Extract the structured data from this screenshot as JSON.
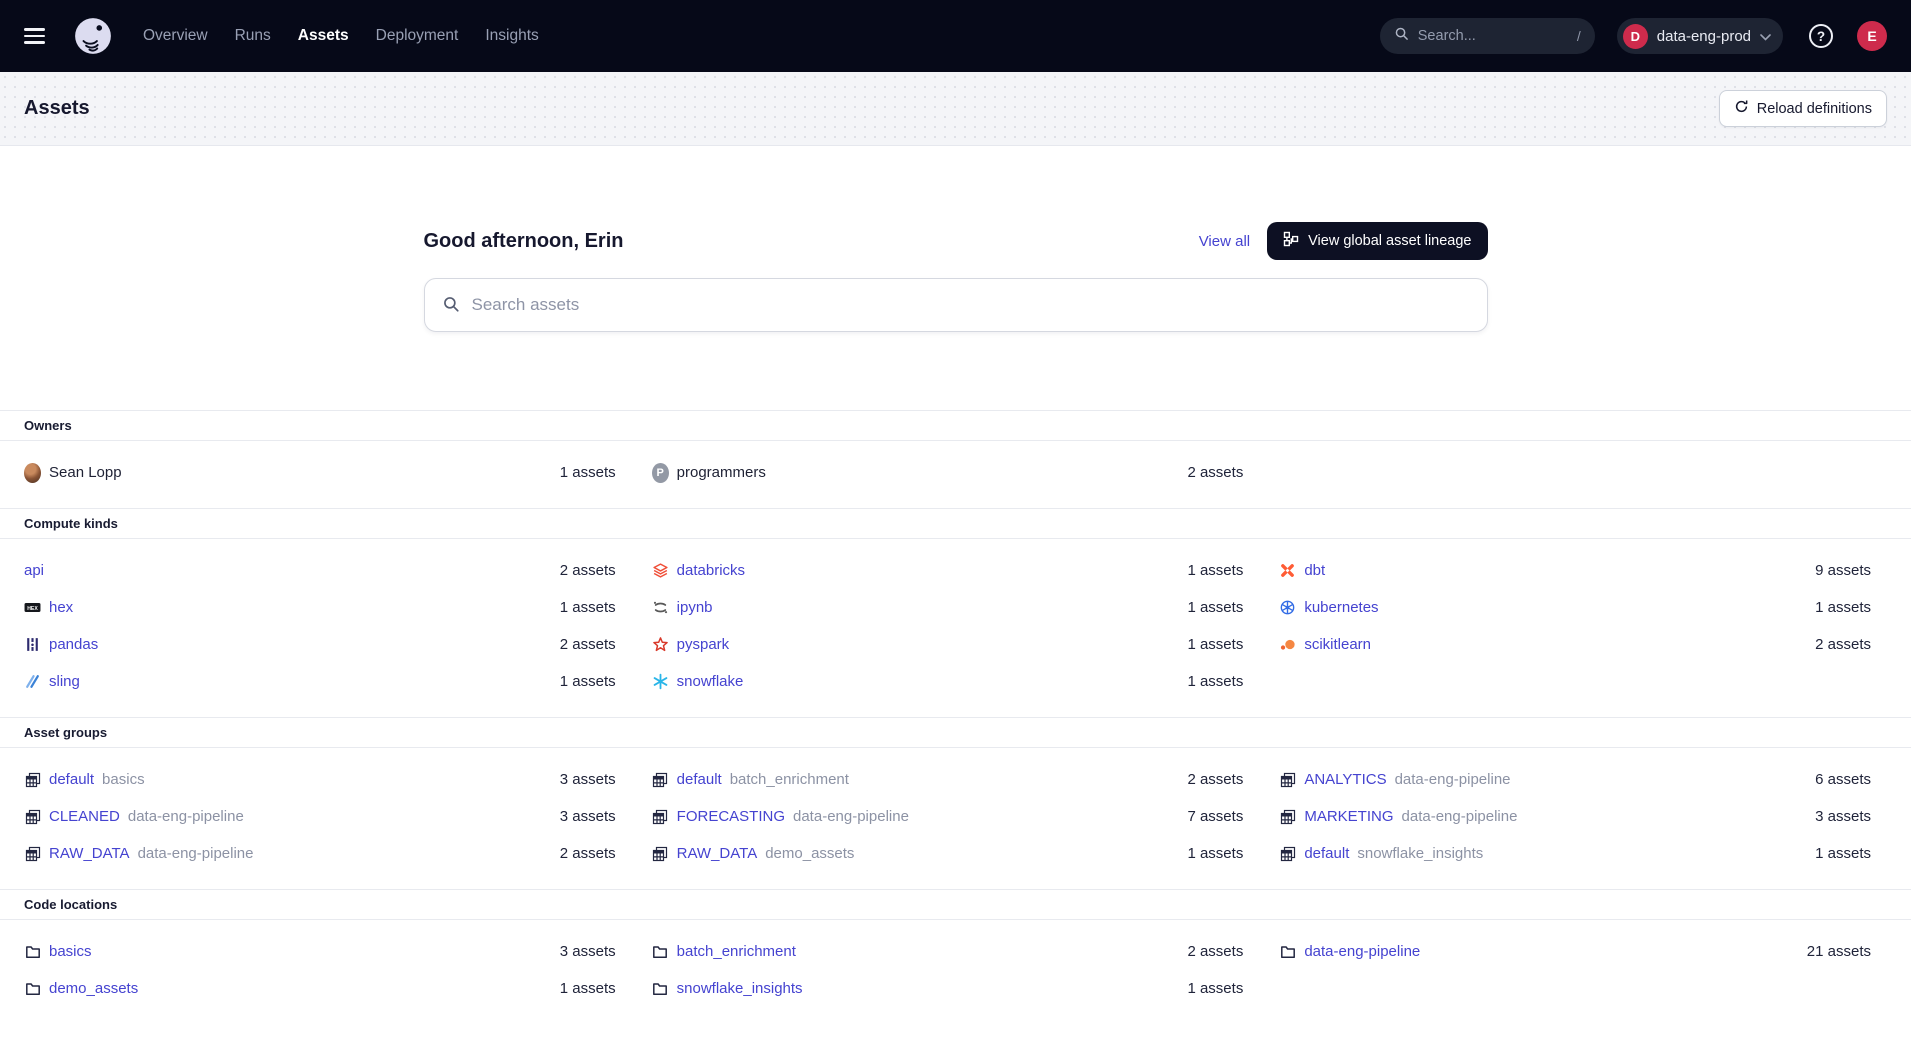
{
  "colors": {
    "link": "#4543d0",
    "badge_red": "#ce2b4c",
    "dark_button_bg": "#0d1023",
    "topbar_bg": "#060918"
  },
  "topnav": {
    "items": [
      {
        "label": "Overview",
        "active": false
      },
      {
        "label": "Runs",
        "active": false
      },
      {
        "label": "Assets",
        "active": true
      },
      {
        "label": "Deployment",
        "active": false
      },
      {
        "label": "Insights",
        "active": false
      }
    ],
    "search_placeholder": "Search...",
    "search_shortcut": "/",
    "deployment_badge": "D",
    "deployment_label": "data-eng-prod",
    "user_initial": "E"
  },
  "page_header": {
    "title": "Assets",
    "reload_button": "Reload definitions"
  },
  "hero": {
    "greeting": "Good afternoon, Erin",
    "view_all": "View all",
    "lineage_button": "View global asset lineage",
    "search_placeholder": "Search assets"
  },
  "sections": [
    {
      "id": "owners",
      "title": "Owners",
      "rows": [
        [
          {
            "icon": "user-photo",
            "label": "Sean Lopp",
            "count": "1 assets",
            "link": false
          },
          {
            "icon": "team",
            "label": "programmers",
            "count": "2 assets",
            "link": false
          },
          null
        ]
      ]
    },
    {
      "id": "compute-kinds",
      "title": "Compute kinds",
      "rows": [
        [
          {
            "icon": null,
            "label": "api",
            "count": "2 assets",
            "link": true
          },
          {
            "icon": "databricks",
            "label": "databricks",
            "count": "1 assets",
            "link": true
          },
          {
            "icon": "dbt",
            "label": "dbt",
            "count": "9 assets",
            "link": true
          }
        ],
        [
          {
            "icon": "hex",
            "label": "hex",
            "count": "1 assets",
            "link": true
          },
          {
            "icon": "ipynb",
            "label": "ipynb",
            "count": "1 assets",
            "link": true
          },
          {
            "icon": "kubernetes",
            "label": "kubernetes",
            "count": "1 assets",
            "link": true
          }
        ],
        [
          {
            "icon": "pandas",
            "label": "pandas",
            "count": "2 assets",
            "link": true
          },
          {
            "icon": "pyspark",
            "label": "pyspark",
            "count": "1 assets",
            "link": true
          },
          {
            "icon": "scikitlearn",
            "label": "scikitlearn",
            "count": "2 assets",
            "link": true
          }
        ],
        [
          {
            "icon": "sling",
            "label": "sling",
            "count": "1 assets",
            "link": true
          },
          {
            "icon": "snowflake",
            "label": "snowflake",
            "count": "1 assets",
            "link": true
          },
          null
        ]
      ]
    },
    {
      "id": "asset-groups",
      "title": "Asset groups",
      "rows": [
        [
          {
            "icon": "table",
            "label": "default",
            "suffix": "basics",
            "count": "3 assets",
            "link": true
          },
          {
            "icon": "table",
            "label": "default",
            "suffix": "batch_enrichment",
            "count": "2 assets",
            "link": true
          },
          {
            "icon": "table",
            "label": "ANALYTICS",
            "suffix": "data-eng-pipeline",
            "count": "6 assets",
            "link": true
          }
        ],
        [
          {
            "icon": "table",
            "label": "CLEANED",
            "suffix": "data-eng-pipeline",
            "count": "3 assets",
            "link": true
          },
          {
            "icon": "table",
            "label": "FORECASTING",
            "suffix": "data-eng-pipeline",
            "count": "7 assets",
            "link": true
          },
          {
            "icon": "table",
            "label": "MARKETING",
            "suffix": "data-eng-pipeline",
            "count": "3 assets",
            "link": true
          }
        ],
        [
          {
            "icon": "table",
            "label": "RAW_DATA",
            "suffix": "data-eng-pipeline",
            "count": "2 assets",
            "link": true
          },
          {
            "icon": "table",
            "label": "RAW_DATA",
            "suffix": "demo_assets",
            "count": "1 assets",
            "link": true
          },
          {
            "icon": "table",
            "label": "default",
            "suffix": "snowflake_insights",
            "count": "1 assets",
            "link": true
          }
        ]
      ]
    },
    {
      "id": "code-locations",
      "title": "Code locations",
      "rows": [
        [
          {
            "icon": "folder",
            "label": "basics",
            "count": "3 assets",
            "link": true
          },
          {
            "icon": "folder",
            "label": "batch_enrichment",
            "count": "2 assets",
            "link": true
          },
          {
            "icon": "folder",
            "label": "data-eng-pipeline",
            "count": "21 assets",
            "link": true
          }
        ],
        [
          {
            "icon": "folder",
            "label": "demo_assets",
            "count": "1 assets",
            "link": true
          },
          {
            "icon": "folder",
            "label": "snowflake_insights",
            "count": "1 assets",
            "link": true
          },
          null
        ]
      ]
    }
  ]
}
